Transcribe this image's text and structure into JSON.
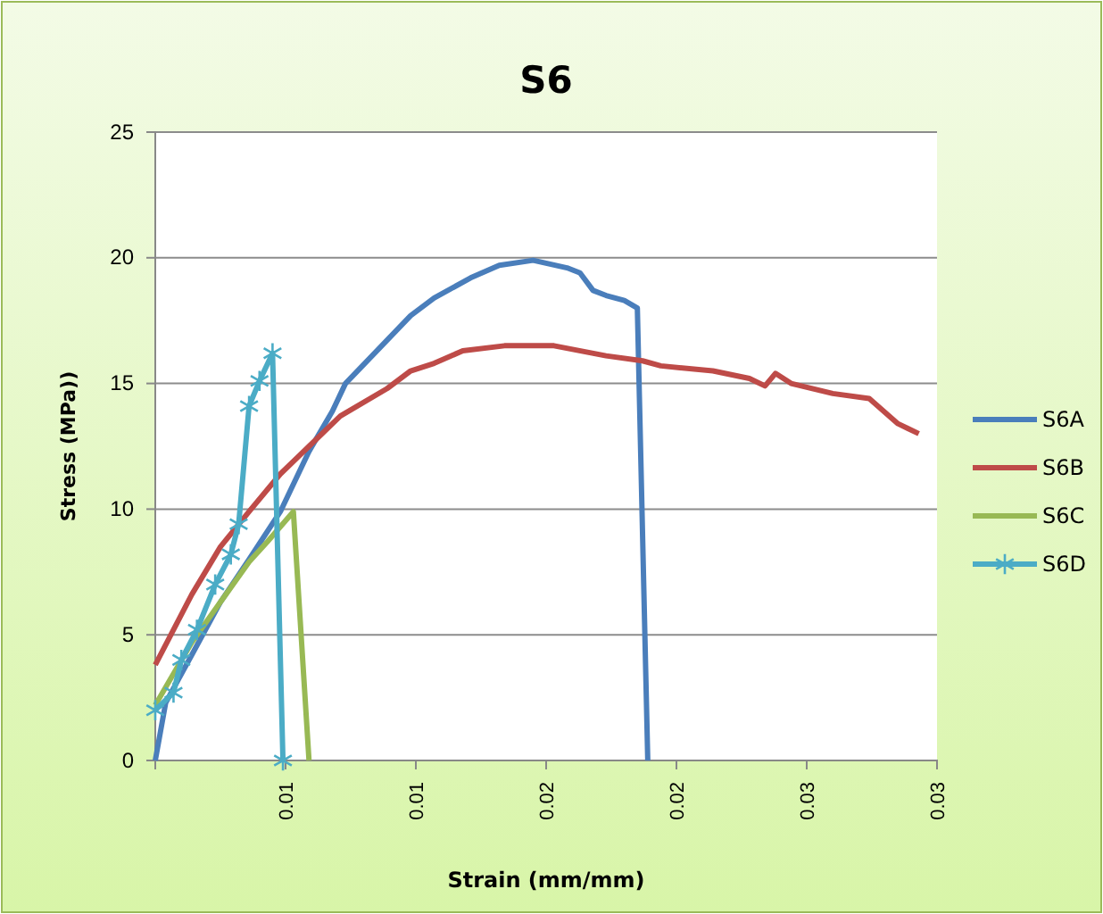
{
  "chart_data": {
    "type": "line",
    "title": "S6",
    "xlabel": "Strain (mm/mm)",
    "ylabel": "Stress (MPa))",
    "xlim": [
      0,
      0.03
    ],
    "ylim": [
      0,
      25
    ],
    "xticks": [
      {
        "value": 0,
        "label": null
      },
      {
        "value": 0.005,
        "label": "0.01"
      },
      {
        "value": 0.01,
        "label": "0.01"
      },
      {
        "value": 0.015,
        "label": "0.02"
      },
      {
        "value": 0.02,
        "label": "0.02"
      },
      {
        "value": 0.025,
        "label": "0.03"
      },
      {
        "value": 0.03,
        "label": "0.03"
      }
    ],
    "yticks": [
      0,
      5,
      10,
      15,
      20,
      25
    ],
    "grid": "y",
    "legend": "right",
    "line_style": "solid",
    "series": [
      {
        "name": "S6A",
        "color": "#4a7ebb",
        "marker": "none",
        "x": [
          0,
          0.0004,
          0.0014,
          0.0025,
          0.0036,
          0.0048,
          0.0059,
          0.0068,
          0.0073,
          0.0098,
          0.0107,
          0.0121,
          0.0132,
          0.0145,
          0.0158,
          0.0163,
          0.0168,
          0.0173,
          0.018,
          0.0185,
          0.0189
        ],
        "values": [
          0,
          2.3,
          4.2,
          6.3,
          8.0,
          9.9,
          12.3,
          13.9,
          15.0,
          17.7,
          18.4,
          19.2,
          19.7,
          19.9,
          19.6,
          19.4,
          18.7,
          18.5,
          18.3,
          18.0,
          0
        ]
      },
      {
        "name": "S6B",
        "color": "#be4b48",
        "marker": "none",
        "x": [
          0,
          0.0014,
          0.0025,
          0.0036,
          0.0048,
          0.0059,
          0.0071,
          0.0089,
          0.0098,
          0.0107,
          0.0118,
          0.0134,
          0.0153,
          0.0173,
          0.0187,
          0.0194,
          0.0214,
          0.0228,
          0.0234,
          0.0238,
          0.0244,
          0.026,
          0.0274,
          0.0285,
          0.0293
        ],
        "values": [
          3.8,
          6.6,
          8.5,
          9.9,
          11.4,
          12.5,
          13.7,
          14.8,
          15.5,
          15.8,
          16.3,
          16.5,
          16.5,
          16.1,
          15.9,
          15.7,
          15.5,
          15.2,
          14.9,
          15.4,
          15.0,
          14.6,
          14.4,
          13.4,
          13.0
        ]
      },
      {
        "name": "S6C",
        "color": "#98b954",
        "marker": "none",
        "x": [
          0,
          0.0014,
          0.0025,
          0.0036,
          0.0043,
          0.0053,
          0.0059
        ],
        "values": [
          2.2,
          4.7,
          6.3,
          7.9,
          8.7,
          9.9,
          0
        ]
      },
      {
        "name": "S6D",
        "color": "#4bacc6",
        "marker": "cross",
        "x": [
          0,
          0.0007,
          0.001,
          0.0016,
          0.0023,
          0.0029,
          0.0032,
          0.0036,
          0.004,
          0.0045,
          0.0049
        ],
        "values": [
          2.0,
          2.7,
          4.0,
          5.2,
          7.0,
          8.2,
          9.4,
          14.1,
          15.1,
          16.2,
          0
        ]
      }
    ]
  }
}
